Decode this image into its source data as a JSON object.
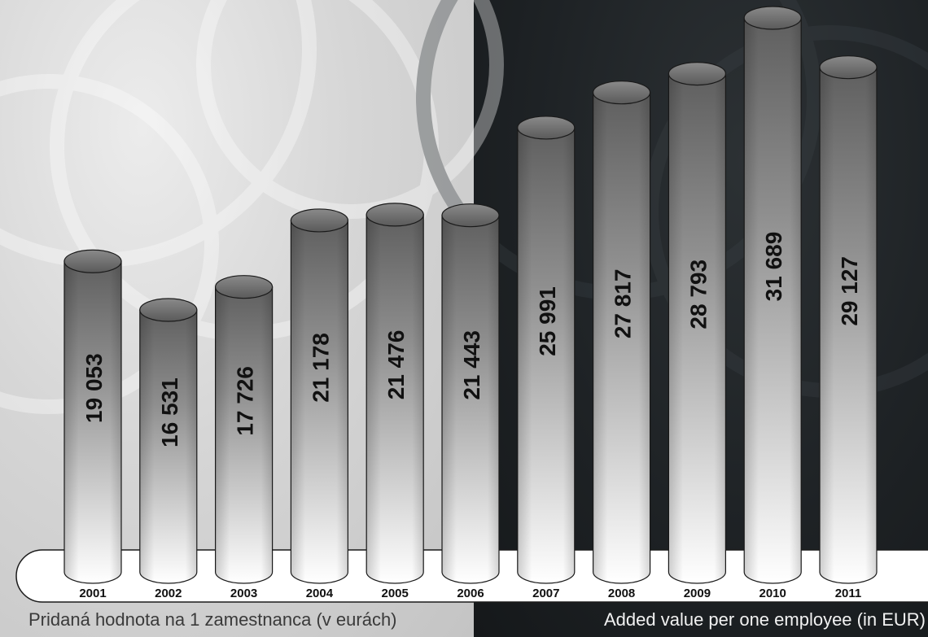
{
  "captions": {
    "left": "Pridaná hodnota na 1 zamestnanca (v eurách)",
    "right": "Added value per one employee (in EUR)"
  },
  "colors": {
    "left_panel": "#d3d3d3",
    "right_panel": "#1f2326",
    "bar_top": "#5f5f5f",
    "bar_bottom": "#ffffff",
    "label_text": "#111111"
  },
  "chart_data": {
    "type": "bar",
    "categories": [
      "2001",
      "2002",
      "2003",
      "2004",
      "2005",
      "2006",
      "2007",
      "2008",
      "2009",
      "2010",
      "2011"
    ],
    "values": [
      19053,
      16531,
      17726,
      21178,
      21476,
      21443,
      25991,
      27817,
      28793,
      31689,
      29127
    ],
    "value_labels": [
      "19 053",
      "16 531",
      "17 726",
      "21 178",
      "21 476",
      "21 443",
      "25 991",
      "27 817",
      "28 793",
      "31 689",
      "29 127"
    ],
    "title": "",
    "xlabel": "",
    "ylabel": "",
    "grid": false,
    "legend": "none",
    "style": "3d-cylinders"
  }
}
